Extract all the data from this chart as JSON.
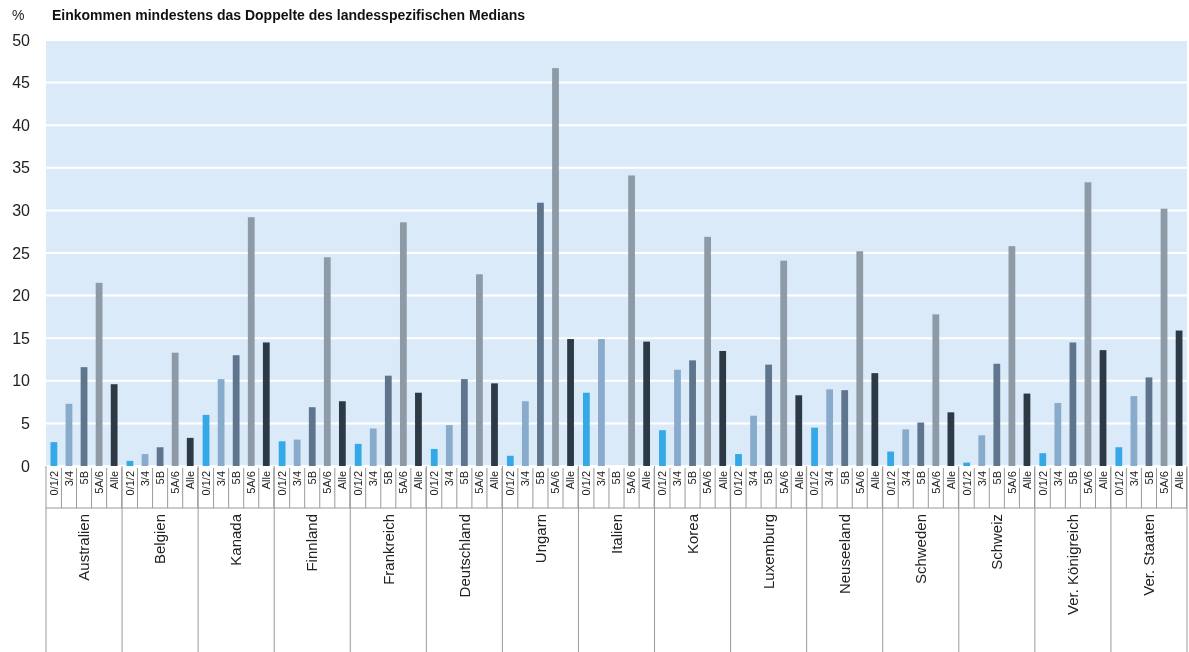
{
  "chart_data": {
    "type": "bar",
    "title": "Einkommen mindestens das Doppelte des landesspezifischen Medians",
    "ylabel": "%",
    "categories": [
      "Australien",
      "Belgien",
      "Kanada",
      "Finnland",
      "Frankreich",
      "Deutschland",
      "Ungarn",
      "Italien",
      "Korea",
      "Luxemburg",
      "Neuseeland",
      "Schweden",
      "Schweiz",
      "Ver. Königreich",
      "Ver. Staaten"
    ],
    "series": [
      {
        "name": "0/1/2",
        "color": "#35a8e8",
        "values": [
          2.8,
          0.6,
          6.0,
          2.9,
          2.6,
          2.0,
          1.2,
          8.6,
          4.2,
          1.4,
          4.5,
          1.7,
          0.4,
          1.5,
          2.2
        ]
      },
      {
        "name": "3/4",
        "color": "#88aacb",
        "values": [
          7.3,
          1.4,
          10.2,
          3.1,
          4.4,
          4.8,
          7.6,
          14.9,
          11.3,
          5.9,
          9.0,
          4.3,
          3.6,
          7.4,
          8.2
        ]
      },
      {
        "name": "5B",
        "color": "#5e758d",
        "values": [
          11.6,
          2.2,
          13.0,
          6.9,
          10.6,
          10.2,
          30.9,
          null,
          12.4,
          11.9,
          8.9,
          5.1,
          12.0,
          14.5,
          10.4
        ]
      },
      {
        "name": "5A/6",
        "color": "#8e9aa6",
        "values": [
          21.5,
          13.3,
          29.2,
          24.5,
          28.6,
          22.5,
          46.7,
          34.1,
          26.9,
          24.1,
          25.2,
          17.8,
          25.8,
          33.3,
          30.2
        ]
      },
      {
        "name": "Alle",
        "color": "#2d3a45",
        "values": [
          9.6,
          3.3,
          14.5,
          7.6,
          8.6,
          9.7,
          14.9,
          14.6,
          13.5,
          8.3,
          10.9,
          6.3,
          8.5,
          13.6,
          15.9
        ]
      }
    ],
    "ylim": [
      0,
      50
    ],
    "yticks": [
      0,
      5,
      10,
      15,
      20,
      25,
      30,
      35,
      40,
      45,
      50
    ],
    "grid": "y"
  }
}
